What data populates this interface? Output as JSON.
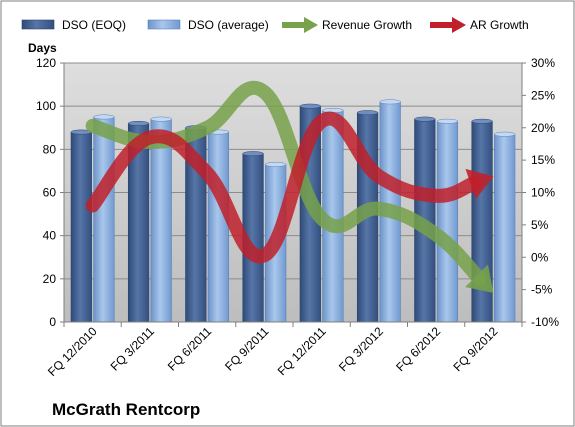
{
  "chart_data": {
    "type": "bar",
    "company": "McGrath Rentcorp",
    "ylabel": "Days",
    "categories": [
      "FQ 12/2010",
      "FQ 3/2011",
      "FQ 6/2011",
      "FQ 9/2011",
      "FQ 12/2011",
      "FQ 3/2012",
      "FQ 6/2012",
      "FQ 9/2012"
    ],
    "y_left": {
      "min": 0,
      "max": 120,
      "ticks": [
        "0",
        "20",
        "40",
        "60",
        "80",
        "100",
        "120"
      ]
    },
    "y_right": {
      "min": -10,
      "max": 30,
      "ticks": [
        "-10%",
        "-5%",
        "0%",
        "5%",
        "10%",
        "15%",
        "20%",
        "25%",
        "30%"
      ]
    },
    "grid": true,
    "legend_position": "top",
    "series": [
      {
        "name": "DSO (EOQ)",
        "type": "bar",
        "axis": "left",
        "color": "#4a6a9c",
        "values": [
          88,
          92,
          90,
          78,
          100,
          97,
          94,
          93
        ]
      },
      {
        "name": "DSO (average)",
        "type": "bar",
        "axis": "left",
        "color": "#8fb3e0",
        "values": [
          95,
          94,
          88,
          73,
          98,
          102,
          93,
          87
        ]
      },
      {
        "name": "Revenue Growth",
        "type": "arrow-line",
        "axis": "right",
        "color": "#77a14a",
        "values": [
          20.3,
          17.8,
          20,
          25.5,
          6,
          7.5,
          3.5,
          -5.5
        ]
      },
      {
        "name": "AR Growth",
        "type": "arrow-line",
        "axis": "right",
        "color": "#c0202a",
        "values": [
          8,
          18.5,
          13,
          0.3,
          21,
          12.5,
          9.5,
          12.5
        ]
      }
    ]
  }
}
